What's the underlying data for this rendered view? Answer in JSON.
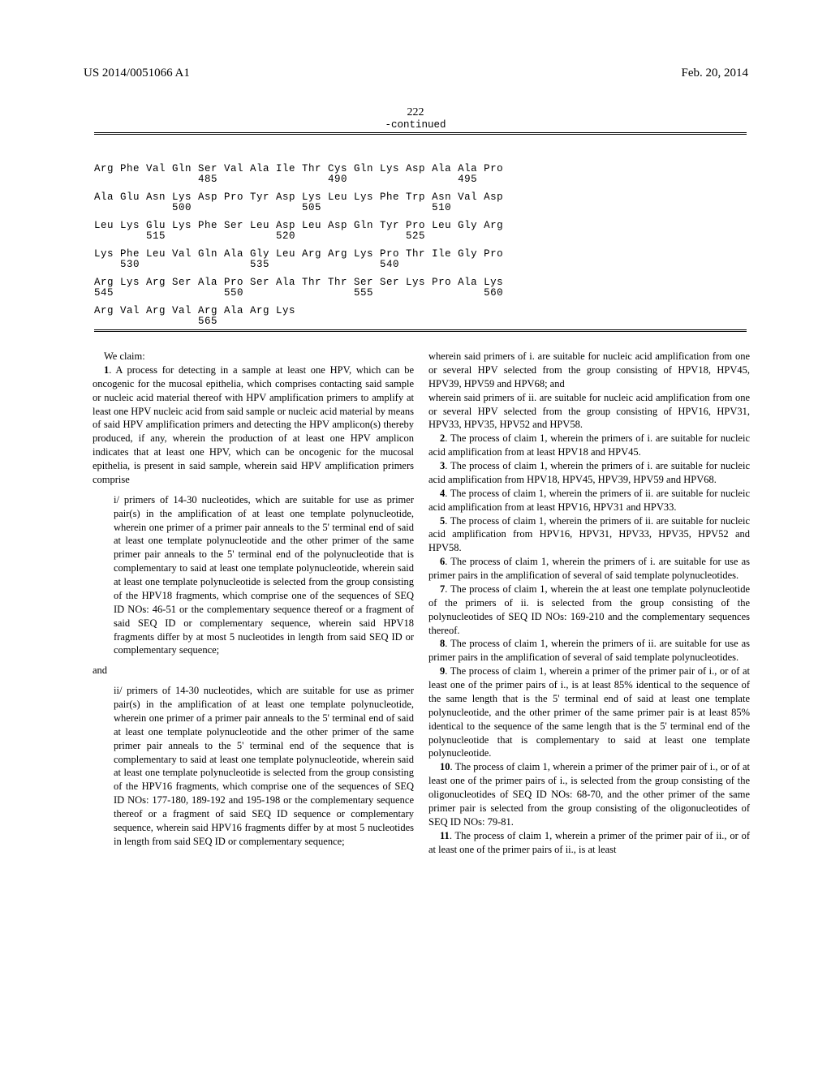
{
  "header": {
    "publication_number": "US 2014/0051066 A1",
    "date": "Feb. 20, 2014",
    "page_number": "222"
  },
  "sequence": {
    "continued_label": "-continued",
    "rows": [
      {
        "aa": "Arg Phe Val Gln Ser Val Ala Ile Thr Cys Gln Lys Asp Ala Ala Pro",
        "nums": "                485                 490                 495"
      },
      {
        "aa": "Ala Glu Asn Lys Asp Pro Tyr Asp Lys Leu Lys Phe Trp Asn Val Asp",
        "nums": "            500                 505                 510"
      },
      {
        "aa": "Leu Lys Glu Lys Phe Ser Leu Asp Leu Asp Gln Tyr Pro Leu Gly Arg",
        "nums": "        515                 520                 525"
      },
      {
        "aa": "Lys Phe Leu Val Gln Ala Gly Leu Arg Arg Lys Pro Thr Ile Gly Pro",
        "nums": "    530                 535                 540"
      },
      {
        "aa": "Arg Lys Arg Ser Ala Pro Ser Ala Thr Thr Ser Ser Lys Pro Ala Lys",
        "nums": "545                 550                 555                 560"
      },
      {
        "aa": "Arg Val Arg Val Arg Ala Arg Lys",
        "nums": "                565"
      }
    ]
  },
  "claims": {
    "we_claim": "We claim:",
    "claim1_intro": "A process for detecting in a sample at least one HPV, which can be oncogenic for the mucosal epithelia, which comprises contacting said sample or nucleic acid material thereof with HPV amplification primers to amplify at least one HPV nucleic acid from said sample or nucleic acid material by means of said HPV amplification primers and detecting the HPV amplicon(s) thereby produced, if any, wherein the production of at least one HPV amplicon indicates that at least one HPV, which can be oncogenic for the mucosal epithelia, is present in said sample, wherein said HPV amplification primers comprise",
    "claim1_i": "i/ primers of 14-30 nucleotides, which are suitable for use as primer pair(s) in the amplification of at least one template polynucleotide, wherein one primer of a primer pair anneals to the 5' terminal end of said at least one template polynucleotide and the other primer of the same primer pair anneals to the 5' terminal end of the polynucleotide that is complementary to said at least one template polynucleotide, wherein said at least one template polynucleotide is selected from the group consisting of the HPV18 fragments, which comprise one of the sequences of SEQ ID NOs: 46-51 or the complementary sequence thereof or a fragment of said SEQ ID or complementary sequence, wherein said HPV18 fragments differ by at most 5 nucleotides in length from said SEQ ID or complementary sequence;",
    "claim1_and": "and",
    "claim1_ii": "ii/ primers of 14-30 nucleotides, which are suitable for use as primer pair(s) in the amplification of at least one template polynucleotide, wherein one primer of a primer pair anneals to the 5' terminal end of said at least one template polynucleotide and the other primer of the same primer pair anneals to the 5' terminal end of the sequence that is complementary to said at least one template polynucleotide, wherein said at least one template polynucleotide is selected from the group consisting of the HPV16 fragments, which comprise one of the sequences of SEQ ID NOs: 177-180, 189-192 and 195-198 or the complementary sequence thereof or a fragment of said SEQ ID sequence or complementary sequence, wherein said HPV16 fragments differ by at most 5 nucleotides in length from said SEQ ID or complementary sequence;",
    "col2_wherein1": "wherein said primers of i. are suitable for nucleic acid amplification from one or several HPV selected from the group consisting of HPV18, HPV45, HPV39, HPV59 and HPV68; and",
    "col2_wherein2": "wherein said primers of ii. are suitable for nucleic acid amplification from one or several HPV selected from the group consisting of HPV16, HPV31, HPV33, HPV35, HPV52 and HPV58.",
    "claim2": "The process of claim 1, wherein the primers of i. are suitable for nucleic acid amplification from at least HPV18 and HPV45.",
    "claim3": "The process of claim 1, wherein the primers of i. are suitable for nucleic acid amplification from HPV18, HPV45, HPV39, HPV59 and HPV68.",
    "claim4": "The process of claim 1, wherein the primers of ii. are suitable for nucleic acid amplification from at least HPV16, HPV31 and HPV33.",
    "claim5": "The process of claim 1, wherein the primers of ii. are suitable for nucleic acid amplification from HPV16, HPV31, HPV33, HPV35, HPV52 and HPV58.",
    "claim6": "The process of claim 1, wherein the primers of i. are suitable for use as primer pairs in the amplification of several of said template polynucleotides.",
    "claim7": "The process of claim 1, wherein the at least one template polynucleotide of the primers of ii. is selected from the group consisting of the polynucleotides of SEQ ID NOs: 169-210 and the complementary sequences thereof.",
    "claim8": "The process of claim 1, wherein the primers of ii. are suitable for use as primer pairs in the amplification of several of said template polynucleotides.",
    "claim9": "The process of claim 1, wherein a primer of the primer pair of i., or of at least one of the primer pairs of i., is at least 85% identical to the sequence of the same length that is the 5' terminal end of said at least one template polynucleotide, and the other primer of the same primer pair is at least 85% identical to the sequence of the same length that is the 5' terminal end of the polynucleotide that is complementary to said at least one template polynucleotide.",
    "claim10": "The process of claim 1, wherein a primer of the primer pair of i., or of at least one of the primer pairs of i., is selected from the group consisting of the oligonucleotides of SEQ ID NOs: 68-70, and the other primer of the same primer pair is selected from the group consisting of the oligonucleotides of SEQ ID NOs: 79-81.",
    "claim11": "The process of claim 1, wherein a primer of the primer pair of ii., or of at least one of the primer pairs of ii., is at least",
    "nums": {
      "n1": "1",
      "n2": "2",
      "n3": "3",
      "n4": "4",
      "n5": "5",
      "n6": "6",
      "n7": "7",
      "n8": "8",
      "n9": "9",
      "n10": "10",
      "n11": "11"
    }
  }
}
